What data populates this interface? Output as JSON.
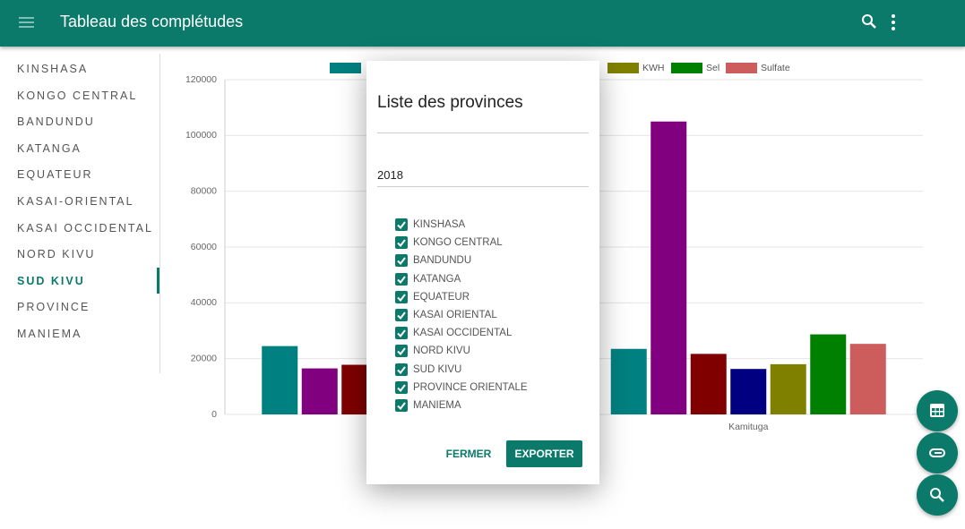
{
  "app_bar": {
    "title": "Tableau des complétudes"
  },
  "sidebar": {
    "items": [
      "KINSHASA",
      "KONGO CENTRAL",
      "BANDUNDU",
      "KATANGA",
      "EQUATEUR",
      "KASAI-ORIENTAL",
      "KASAI OCCIDENTAL",
      "NORD KIVU",
      "SUD KIVU",
      "PROVINCE",
      "MANIEMA"
    ],
    "active": 8
  },
  "chart_data": {
    "type": "bar",
    "categories": [
      null,
      "Kamituga"
    ],
    "series": [
      {
        "color": "#008080",
        "values": [
          24500,
          23500
        ]
      },
      {
        "color": "#800080",
        "values": [
          16500,
          105000
        ]
      },
      {
        "color": "#800000",
        "values": [
          17800,
          21700
        ]
      },
      {
        "color": "#000080",
        "values": [
          null,
          16300
        ]
      },
      {
        "name": "KWH",
        "color": "#808000",
        "values": [
          null,
          18000
        ]
      },
      {
        "name": "Sel",
        "color": "#008000",
        "values": [
          null,
          28700
        ]
      },
      {
        "name": "Sulfate",
        "color": "#cd5c5c",
        "values": [
          null,
          25300
        ]
      }
    ],
    "ylim": [
      0,
      120000
    ],
    "yticks": [
      0,
      20000,
      40000,
      60000,
      80000,
      100000,
      120000
    ],
    "grid": true
  },
  "dialog": {
    "title": "Liste des provinces",
    "year": "2018",
    "provinces": [
      "KINSHASA",
      "KONGO CENTRAL",
      "BANDUNDU",
      "KATANGA",
      "EQUATEUR",
      "KASAI ORIENTAL",
      "KASAI OCCIDENTAL",
      "NORD KIVU",
      "SUD KIVU",
      "PROVINCE ORIENTALE",
      "MANIEMA"
    ],
    "checked": true,
    "buttons": [
      "FERMER",
      "EXPORTER"
    ]
  }
}
